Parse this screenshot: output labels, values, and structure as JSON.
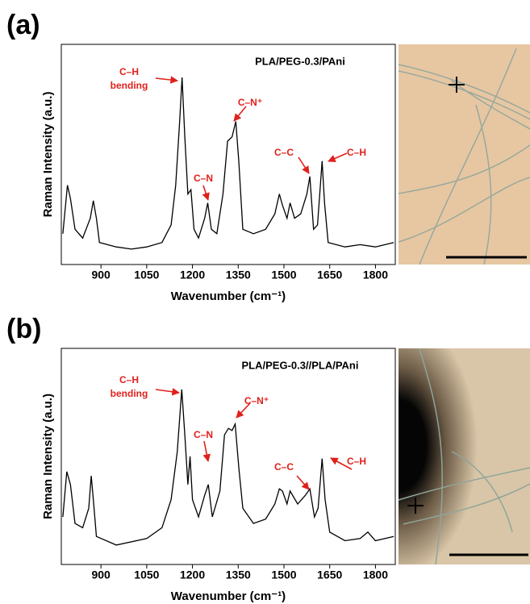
{
  "chart_data": [
    {
      "type": "line",
      "panel_label": "(a)",
      "title": "PLA/PEG-0.3/PAni",
      "x_label": "Wavenumber (cm⁻¹)",
      "y_label": "Raman Intensity (a.u.)",
      "color": "#000000",
      "xlim": [
        770,
        1865
      ],
      "ylim": [
        0,
        100
      ],
      "xticks": [
        900,
        1050,
        1200,
        1350,
        1500,
        1650,
        1800
      ],
      "x": [
        775,
        790,
        800,
        815,
        840,
        865,
        875,
        885,
        895,
        950,
        1000,
        1050,
        1100,
        1130,
        1145,
        1158,
        1166,
        1175,
        1185,
        1195,
        1205,
        1220,
        1240,
        1250,
        1262,
        1280,
        1300,
        1315,
        1330,
        1342,
        1352,
        1365,
        1400,
        1440,
        1470,
        1485,
        1495,
        1510,
        1520,
        1535,
        1555,
        1575,
        1585,
        1597,
        1610,
        1625,
        1633,
        1645,
        1700,
        1750,
        1800,
        1860
      ],
      "values": [
        14,
        36,
        30,
        16,
        12,
        21,
        29,
        21,
        10,
        8,
        7,
        8,
        10,
        18,
        36,
        65,
        85,
        58,
        32,
        34,
        16,
        12,
        21,
        28,
        16,
        14,
        32,
        56,
        58,
        65,
        47,
        16,
        14,
        16,
        23,
        32,
        27,
        21,
        28,
        21,
        23,
        32,
        40,
        16,
        18,
        47,
        28,
        10,
        8,
        9,
        8,
        10
      ],
      "annotations": [
        {
          "lines": [
            "C–H",
            "bending"
          ]
        },
        {
          "lines": [
            "C–N"
          ]
        },
        {
          "lines": [
            "C–N⁺"
          ]
        },
        {
          "lines": [
            "C–C"
          ]
        },
        {
          "lines": [
            "C–H"
          ]
        }
      ]
    },
    {
      "type": "line",
      "panel_label": "(b)",
      "title": "PLA/PEG-0.3//PLA/PAni",
      "x_label": "Wavenumber (cm⁻¹)",
      "y_label": "Raman Intensity (a.u.)",
      "color": "#000000",
      "xlim": [
        770,
        1865
      ],
      "ylim": [
        0,
        100
      ],
      "xticks": [
        900,
        1050,
        1200,
        1350,
        1500,
        1650,
        1800
      ],
      "x": [
        775,
        788,
        800,
        815,
        840,
        860,
        868,
        875,
        885,
        950,
        1050,
        1100,
        1130,
        1150,
        1165,
        1175,
        1185,
        1192,
        1200,
        1220,
        1240,
        1252,
        1265,
        1290,
        1305,
        1318,
        1330,
        1340,
        1352,
        1365,
        1400,
        1440,
        1470,
        1485,
        1495,
        1510,
        1520,
        1545,
        1570,
        1585,
        1600,
        1612,
        1625,
        1635,
        1650,
        1700,
        1750,
        1775,
        1800,
        1860
      ],
      "values": [
        22,
        43,
        37,
        19,
        17,
        26,
        41,
        30,
        13,
        9,
        12,
        17,
        30,
        52,
        81,
        60,
        37,
        50,
        30,
        22,
        32,
        37,
        22,
        34,
        60,
        63,
        62,
        65,
        45,
        26,
        19,
        21,
        28,
        35,
        34,
        28,
        34,
        28,
        32,
        35,
        22,
        26,
        49,
        30,
        15,
        11,
        12,
        15,
        11,
        13
      ],
      "annotations": [
        {
          "lines": [
            "C–H",
            "bending"
          ]
        },
        {
          "lines": [
            "C–N"
          ]
        },
        {
          "lines": [
            "C–N⁺"
          ]
        },
        {
          "lines": [
            "C–C"
          ]
        },
        {
          "lines": [
            "C–H"
          ]
        }
      ]
    }
  ]
}
